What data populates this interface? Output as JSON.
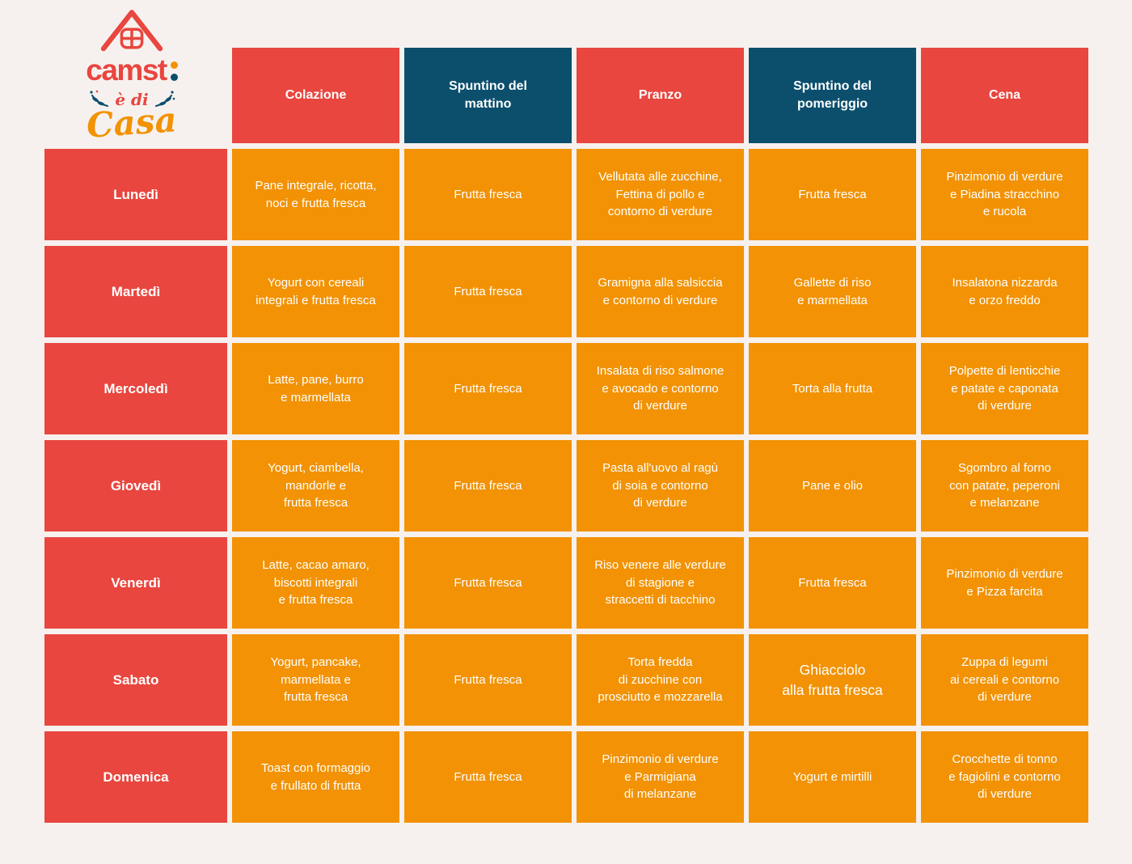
{
  "logo": {
    "brand": "camst",
    "tagline": "è di",
    "tagline2": "Casa"
  },
  "colors": {
    "red": "#e8463f",
    "teal": "#0b4f6d",
    "orange": "#f29204",
    "background": "#f6f1ee",
    "cell_text": "#ffffff"
  },
  "table": {
    "columns": [
      {
        "label": "Colazione",
        "style": "red"
      },
      {
        "label": "Spuntino del\nmattino",
        "style": "teal"
      },
      {
        "label": "Pranzo",
        "style": "red"
      },
      {
        "label": "Spuntino del\npomeriggio",
        "style": "teal"
      },
      {
        "label": "Cena",
        "style": "red"
      }
    ],
    "rows": [
      {
        "day": "Lunedì",
        "meals": [
          "Pane integrale, ricotta,\nnoci e frutta fresca",
          "Frutta fresca",
          "Vellutata alle zucchine,\nFettina di pollo e\ncontorno di verdure",
          "Frutta fresca",
          "Pinzimonio di verdure\ne Piadina stracchino\ne rucola"
        ]
      },
      {
        "day": "Martedì",
        "meals": [
          "Yogurt con cereali\nintegrali e frutta fresca",
          "Frutta fresca",
          "Gramigna alla salsiccia\ne contorno di verdure",
          "Gallette di riso\ne marmellata",
          "Insalatona nizzarda\ne orzo freddo"
        ]
      },
      {
        "day": "Mercoledì",
        "meals": [
          "Latte, pane, burro\ne marmellata",
          "Frutta fresca",
          "Insalata di riso salmone\ne avocado e contorno\ndi verdure",
          "Torta alla frutta",
          "Polpette di lenticchie\ne patate e caponata\ndi verdure"
        ]
      },
      {
        "day": "Giovedì",
        "meals": [
          "Yogurt, ciambella,\nmandorle e\nfrutta fresca",
          "Frutta fresca",
          "Pasta all'uovo al ragù\ndi soia e contorno\ndi verdure",
          "Pane e olio",
          "Sgombro al forno\ncon patate, peperoni\ne melanzane"
        ]
      },
      {
        "day": "Venerdì",
        "meals": [
          "Latte, cacao amaro,\nbiscotti integrali\ne frutta fresca",
          "Frutta fresca",
          "Riso venere alle verdure\ndi stagione e\nstraccetti di tacchino",
          "Frutta fresca",
          "Pinzimonio di verdure\ne Pizza farcita"
        ]
      },
      {
        "day": "Sabato",
        "meals": [
          "Yogurt, pancake,\nmarmellata e\nfrutta fresca",
          "Frutta fresca",
          "Torta fredda\ndi zucchine con\nprosciutto e mozzarella",
          "Ghiacciolo\nalla frutta fresca",
          "Zuppa di legumi\nai cereali e contorno\ndi verdure"
        ]
      },
      {
        "day": "Domenica",
        "meals": [
          "Toast con formaggio\ne frullato di frutta",
          "Frutta fresca",
          "Pinzimonio di verdure\ne Parmigiana\ndi melanzane",
          "Yogurt e mirtilli",
          "Crocchette di tonno\ne fagiolini e contorno\ndi verdure"
        ]
      }
    ],
    "emphasized_cell": {
      "row_index": 5,
      "meal_index": 3
    }
  }
}
